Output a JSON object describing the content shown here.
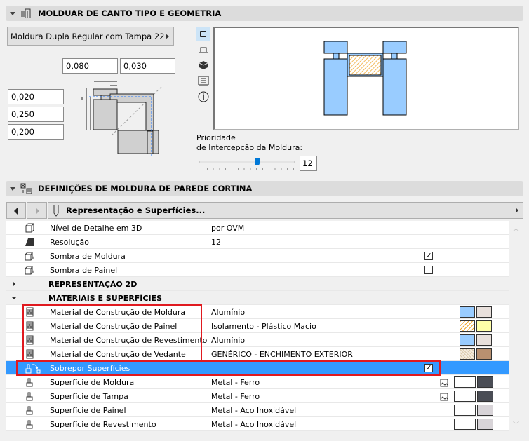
{
  "geometry_panel": {
    "title": "MOLDUAR DE CANTO TIPO E GEOMETRIA",
    "frame_type": "Moldura Dupla Regular com Tampa 22",
    "inputs": {
      "top_1": "0,080",
      "top_2": "0,030",
      "left_1": "0,020",
      "left_2": "0,250",
      "left_3": "0,200"
    },
    "view_buttons": [
      "plan-view-icon",
      "section-view-icon",
      "3d-view-icon",
      "list-view-icon",
      "info-icon"
    ],
    "priority_label_1": "Prioridade",
    "priority_label_2": "de Intercepção da Moldura:",
    "priority_value": "12",
    "priority_slider_fraction": 0.6,
    "colors": {
      "frame_fill": "#99ccff",
      "panel_hatch": "#f0a830"
    }
  },
  "definitions_panel": {
    "title": "DEFINIÇÕES DE MOLDURA DE PAREDE CORTINA",
    "page_selector": "Representação e Superfícies...",
    "rows": [
      {
        "label": "Nível de Detalhe em 3D",
        "value": "por OVM",
        "icon": "cube-icon"
      },
      {
        "label": "Resolução",
        "value": "12",
        "icon": "resolution-icon"
      },
      {
        "label": "Sombra de Moldura",
        "checked": true,
        "icon": "shadow-cube-icon"
      },
      {
        "label": "Sombra de Painel",
        "checked": false,
        "icon": "shadow-cube-icon"
      }
    ],
    "groups": {
      "rep2d": "REPRESENTAÇÃO 2D",
      "materials": "MATERIAIS E SUPERFÍCIES"
    },
    "materials": [
      {
        "label": "Material de Construção de Moldura",
        "value": "Alumínio",
        "colors": [
          "#99ccff",
          "#e8e0dc"
        ]
      },
      {
        "label": "Material de Construção de Painel",
        "value": "Isolamento - Plástico Macio",
        "colors": [
          "#f0a830",
          "#ffffa8"
        ]
      },
      {
        "label": "Material de Construção de Revestimento",
        "value": "Alumínio",
        "colors": [
          "#99ccff",
          "#e8e0dc"
        ]
      },
      {
        "label": "Material de Construção de Vedante",
        "value": "GENÉRICO - ENCHIMENTO EXTERIOR",
        "colors": [
          "#e8dcc8",
          "#b89070"
        ]
      }
    ],
    "override": {
      "label": "Sobrepor Superfícies",
      "checked": true
    },
    "surfaces": [
      {
        "label": "Superfície de Moldura",
        "value": "Metal - Ferro",
        "colors": [
          "#ffffff",
          "#4a4d55"
        ]
      },
      {
        "label": "Superfície de Tampa",
        "value": "Metal - Ferro",
        "colors": [
          "#ffffff",
          "#4a4d55"
        ]
      },
      {
        "label": "Superfície de Painel",
        "value": "Metal - Aço Inoxidável",
        "colors": [
          "#ffffff",
          "#d8d4d8"
        ]
      },
      {
        "label": "Superfície de Revestimento",
        "value": "Metal - Aço Inoxidável",
        "colors": [
          "#ffffff",
          "#d8d4d8"
        ]
      }
    ],
    "selection_color": "#3399ff",
    "highlight_color": "#e0191f"
  }
}
